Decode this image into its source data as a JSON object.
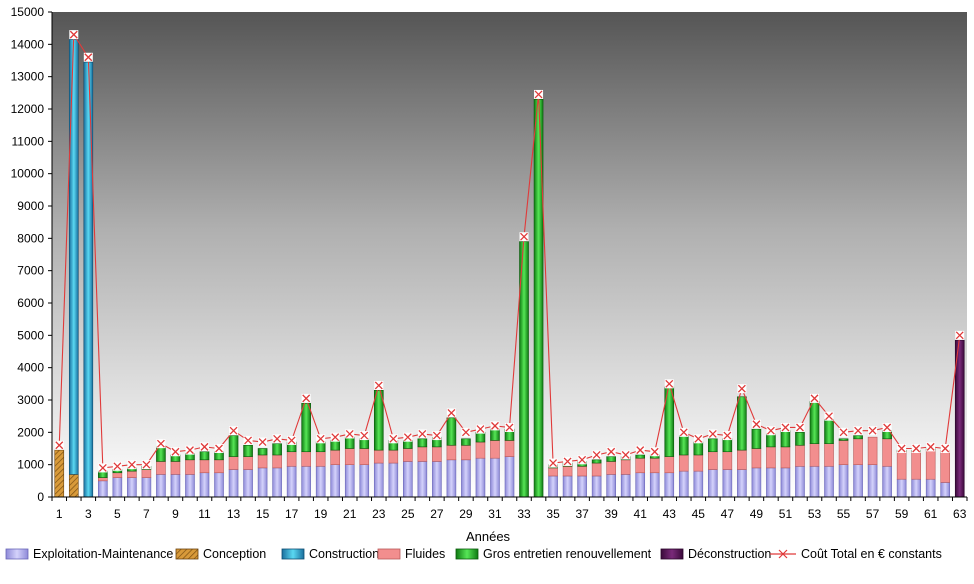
{
  "chart_data": {
    "type": "bar",
    "stacked": true,
    "xlabel": "Années",
    "ylabel": "",
    "title": "",
    "ylim": [
      0,
      15000
    ],
    "yticks": [
      0,
      1000,
      2000,
      3000,
      4000,
      5000,
      6000,
      7000,
      8000,
      9000,
      10000,
      11000,
      12000,
      13000,
      14000,
      15000
    ],
    "xtick_labels": [
      "1",
      "3",
      "5",
      "7",
      "9",
      "11",
      "13",
      "15",
      "17",
      "19",
      "21",
      "23",
      "25",
      "27",
      "29",
      "31",
      "33",
      "35",
      "37",
      "39",
      "41",
      "43",
      "45",
      "47",
      "49",
      "51",
      "53",
      "55",
      "57",
      "59",
      "61",
      "63"
    ],
    "categories": [
      1,
      2,
      3,
      4,
      5,
      6,
      7,
      8,
      9,
      10,
      11,
      12,
      13,
      14,
      15,
      16,
      17,
      18,
      19,
      20,
      21,
      22,
      23,
      24,
      25,
      26,
      27,
      28,
      29,
      30,
      31,
      32,
      33,
      34,
      35,
      36,
      37,
      38,
      39,
      40,
      41,
      42,
      43,
      44,
      45,
      46,
      47,
      48,
      49,
      50,
      51,
      52,
      53,
      54,
      55,
      56,
      57,
      58,
      59,
      60,
      61,
      62,
      63
    ],
    "legend_position": "bottom",
    "grid": false,
    "series": [
      {
        "name": "Exploitation-Maintenance",
        "color": "#a9a6ee",
        "pattern": "gradient",
        "values": [
          0,
          0,
          0,
          500,
          600,
          600,
          600,
          700,
          700,
          700,
          750,
          750,
          850,
          850,
          900,
          900,
          950,
          950,
          950,
          1000,
          1000,
          1000,
          1050,
          1050,
          1100,
          1100,
          1100,
          1150,
          1150,
          1200,
          1200,
          1250,
          0,
          0,
          650,
          650,
          650,
          650,
          700,
          700,
          750,
          750,
          750,
          800,
          800,
          850,
          850,
          850,
          900,
          900,
          900,
          950,
          950,
          950,
          1000,
          1000,
          1000,
          950,
          550,
          550,
          550,
          450,
          0
        ]
      },
      {
        "name": "Conception",
        "color": "#c8882a",
        "pattern": "hatch",
        "values": [
          1450,
          700,
          0,
          0,
          0,
          0,
          0,
          0,
          0,
          0,
          0,
          0,
          0,
          0,
          0,
          0,
          0,
          0,
          0,
          0,
          0,
          0,
          0,
          0,
          0,
          0,
          0,
          0,
          0,
          0,
          0,
          0,
          0,
          0,
          0,
          0,
          0,
          0,
          0,
          0,
          0,
          0,
          0,
          0,
          0,
          0,
          0,
          0,
          0,
          0,
          0,
          0,
          0,
          0,
          0,
          0,
          0,
          0,
          0,
          0,
          0,
          0,
          0
        ]
      },
      {
        "name": "Construction",
        "color": "#2aa8d8",
        "pattern": "gradient",
        "values": [
          0,
          13450,
          13450,
          0,
          0,
          0,
          0,
          0,
          0,
          0,
          0,
          0,
          0,
          0,
          0,
          0,
          0,
          0,
          0,
          0,
          0,
          0,
          0,
          0,
          0,
          0,
          0,
          0,
          0,
          0,
          0,
          0,
          0,
          0,
          0,
          0,
          0,
          0,
          0,
          0,
          0,
          0,
          0,
          0,
          0,
          0,
          0,
          0,
          0,
          0,
          0,
          0,
          0,
          0,
          0,
          0,
          0,
          0,
          0,
          0,
          0,
          0,
          0
        ]
      },
      {
        "name": "Fluides",
        "color": "#f08c8c",
        "pattern": "solid",
        "values": [
          0,
          0,
          0,
          100,
          150,
          200,
          250,
          400,
          400,
          450,
          400,
          400,
          400,
          400,
          400,
          400,
          450,
          450,
          450,
          450,
          500,
          500,
          400,
          400,
          400,
          450,
          450,
          450,
          450,
          500,
          550,
          500,
          0,
          0,
          250,
          300,
          300,
          400,
          400,
          450,
          450,
          450,
          500,
          500,
          500,
          550,
          550,
          600,
          600,
          650,
          650,
          650,
          700,
          700,
          750,
          800,
          850,
          850,
          850,
          850,
          900,
          1000,
          0
        ]
      },
      {
        "name": "Gros entretien renouvellement",
        "color": "#2fc72f",
        "pattern": "gradient",
        "values": [
          0,
          0,
          0,
          200,
          100,
          100,
          100,
          450,
          200,
          200,
          250,
          250,
          650,
          350,
          200,
          350,
          300,
          1500,
          300,
          300,
          350,
          300,
          1850,
          300,
          250,
          250,
          300,
          850,
          200,
          300,
          350,
          350,
          7900,
          12300,
          100,
          100,
          150,
          100,
          150,
          100,
          100,
          100,
          2150,
          600,
          400,
          400,
          400,
          1650,
          600,
          400,
          500,
          400,
          1300,
          750,
          50,
          100,
          0,
          250,
          50,
          50,
          50,
          0,
          0
        ]
      },
      {
        "name": "Déconstruction",
        "color": "#5a1a5a",
        "pattern": "gradient",
        "values": [
          0,
          0,
          0,
          0,
          0,
          0,
          0,
          0,
          0,
          0,
          0,
          0,
          0,
          0,
          0,
          0,
          0,
          0,
          0,
          0,
          0,
          0,
          0,
          0,
          0,
          0,
          0,
          0,
          0,
          0,
          0,
          0,
          0,
          0,
          0,
          0,
          0,
          0,
          0,
          0,
          0,
          0,
          0,
          0,
          0,
          0,
          0,
          0,
          0,
          0,
          0,
          0,
          0,
          0,
          0,
          0,
          0,
          0,
          0,
          0,
          0,
          0,
          4850
        ]
      }
    ],
    "line_series": {
      "name": "Coût Total en € constants",
      "color": "#e03a3a",
      "marker": "x",
      "values": [
        1600,
        14300,
        13600,
        900,
        950,
        1000,
        1000,
        1650,
        1400,
        1450,
        1550,
        1500,
        2050,
        1750,
        1700,
        1800,
        1750,
        3050,
        1800,
        1850,
        1950,
        1900,
        3450,
        1800,
        1850,
        1950,
        1900,
        2600,
        2000,
        2100,
        2200,
        2150,
        8050,
        12450,
        1050,
        1100,
        1150,
        1300,
        1400,
        1300,
        1450,
        1400,
        3500,
        2000,
        1800,
        1950,
        1900,
        3350,
        2250,
        2050,
        2150,
        2150,
        3050,
        2500,
        2000,
        2050,
        2050,
        2150,
        1500,
        1500,
        1550,
        1500,
        5000
      ]
    }
  }
}
